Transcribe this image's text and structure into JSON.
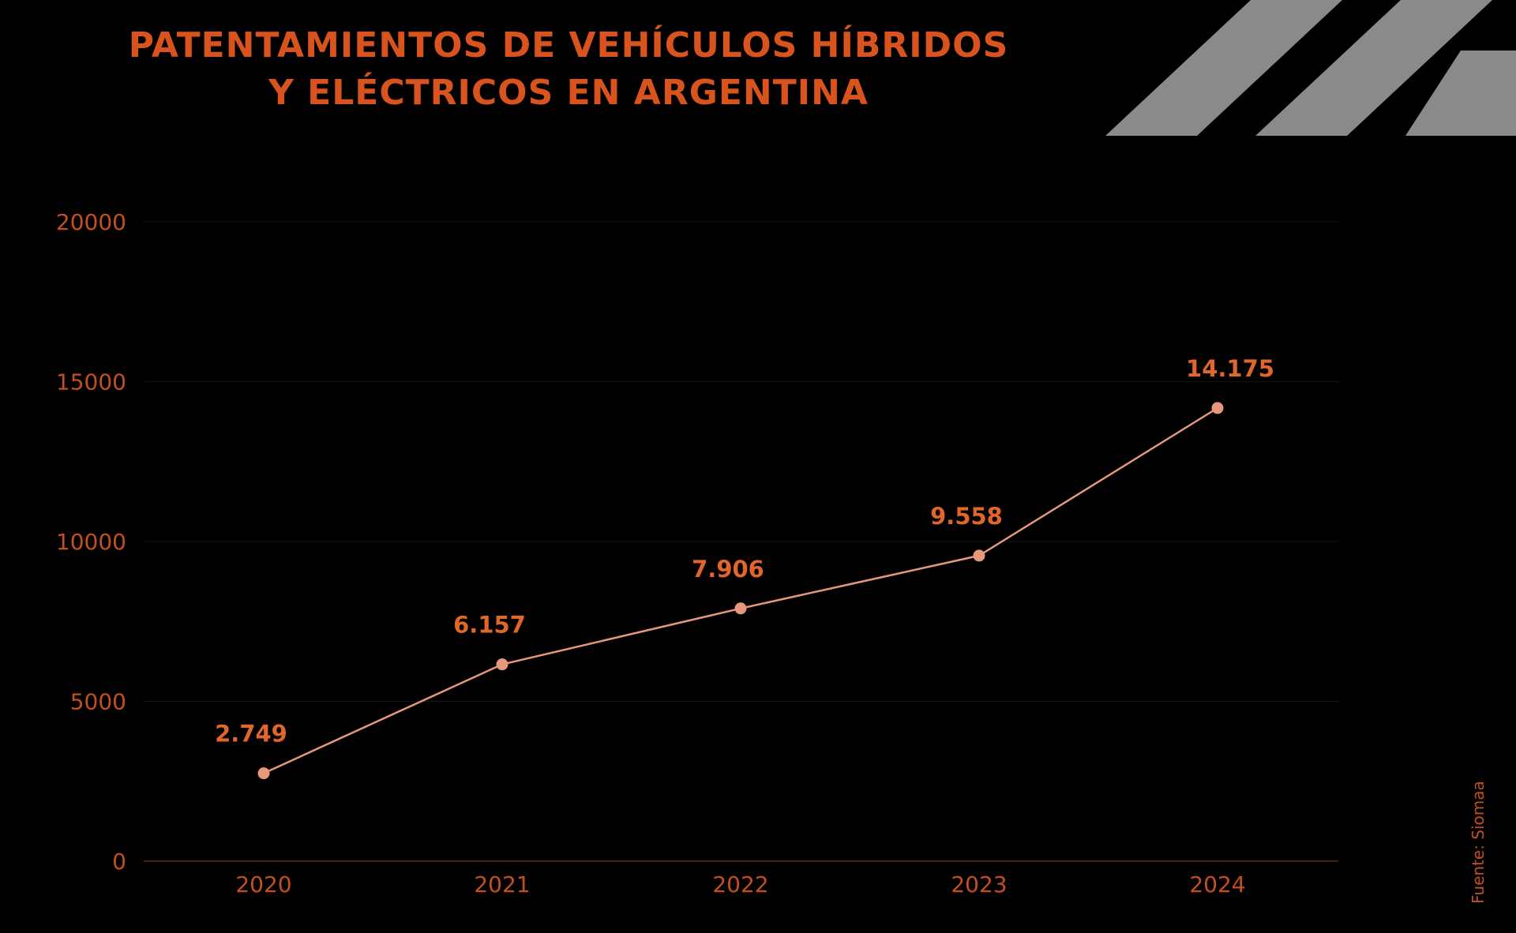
{
  "title_lines": [
    "PATENTAMIENTOS DE VEHÍCULOS HÍBRIDOS",
    "Y ELÉCTRICOS EN ARGENTINA"
  ],
  "source": "Fuente: Siomaa",
  "colors": {
    "background": "#000000",
    "title": "#d9531e",
    "axis_text": "#c2501f",
    "line": "#e8987a",
    "data_label": "#e0662c",
    "stripes": "#8a8a8a",
    "grid": "#161616",
    "baseline": "#5a2a12"
  },
  "chart_data": {
    "type": "line",
    "title": "PATENTAMIENTOS DE VEHÍCULOS HÍBRIDOS Y ELÉCTRICOS EN ARGENTINA",
    "categories": [
      "2020",
      "2021",
      "2022",
      "2023",
      "2024"
    ],
    "values": [
      2749,
      6157,
      7906,
      9558,
      14175
    ],
    "data_labels": [
      "2.749",
      "6.157",
      "7.906",
      "9.558",
      "14.175"
    ],
    "yticks": [
      0,
      5000,
      10000,
      15000,
      20000
    ],
    "ytick_labels": [
      "0",
      "5000",
      "10000",
      "15000",
      "20000"
    ],
    "ylim": [
      0,
      20000
    ],
    "xlabel": "",
    "ylabel": "",
    "grid": true,
    "legend": "none"
  }
}
